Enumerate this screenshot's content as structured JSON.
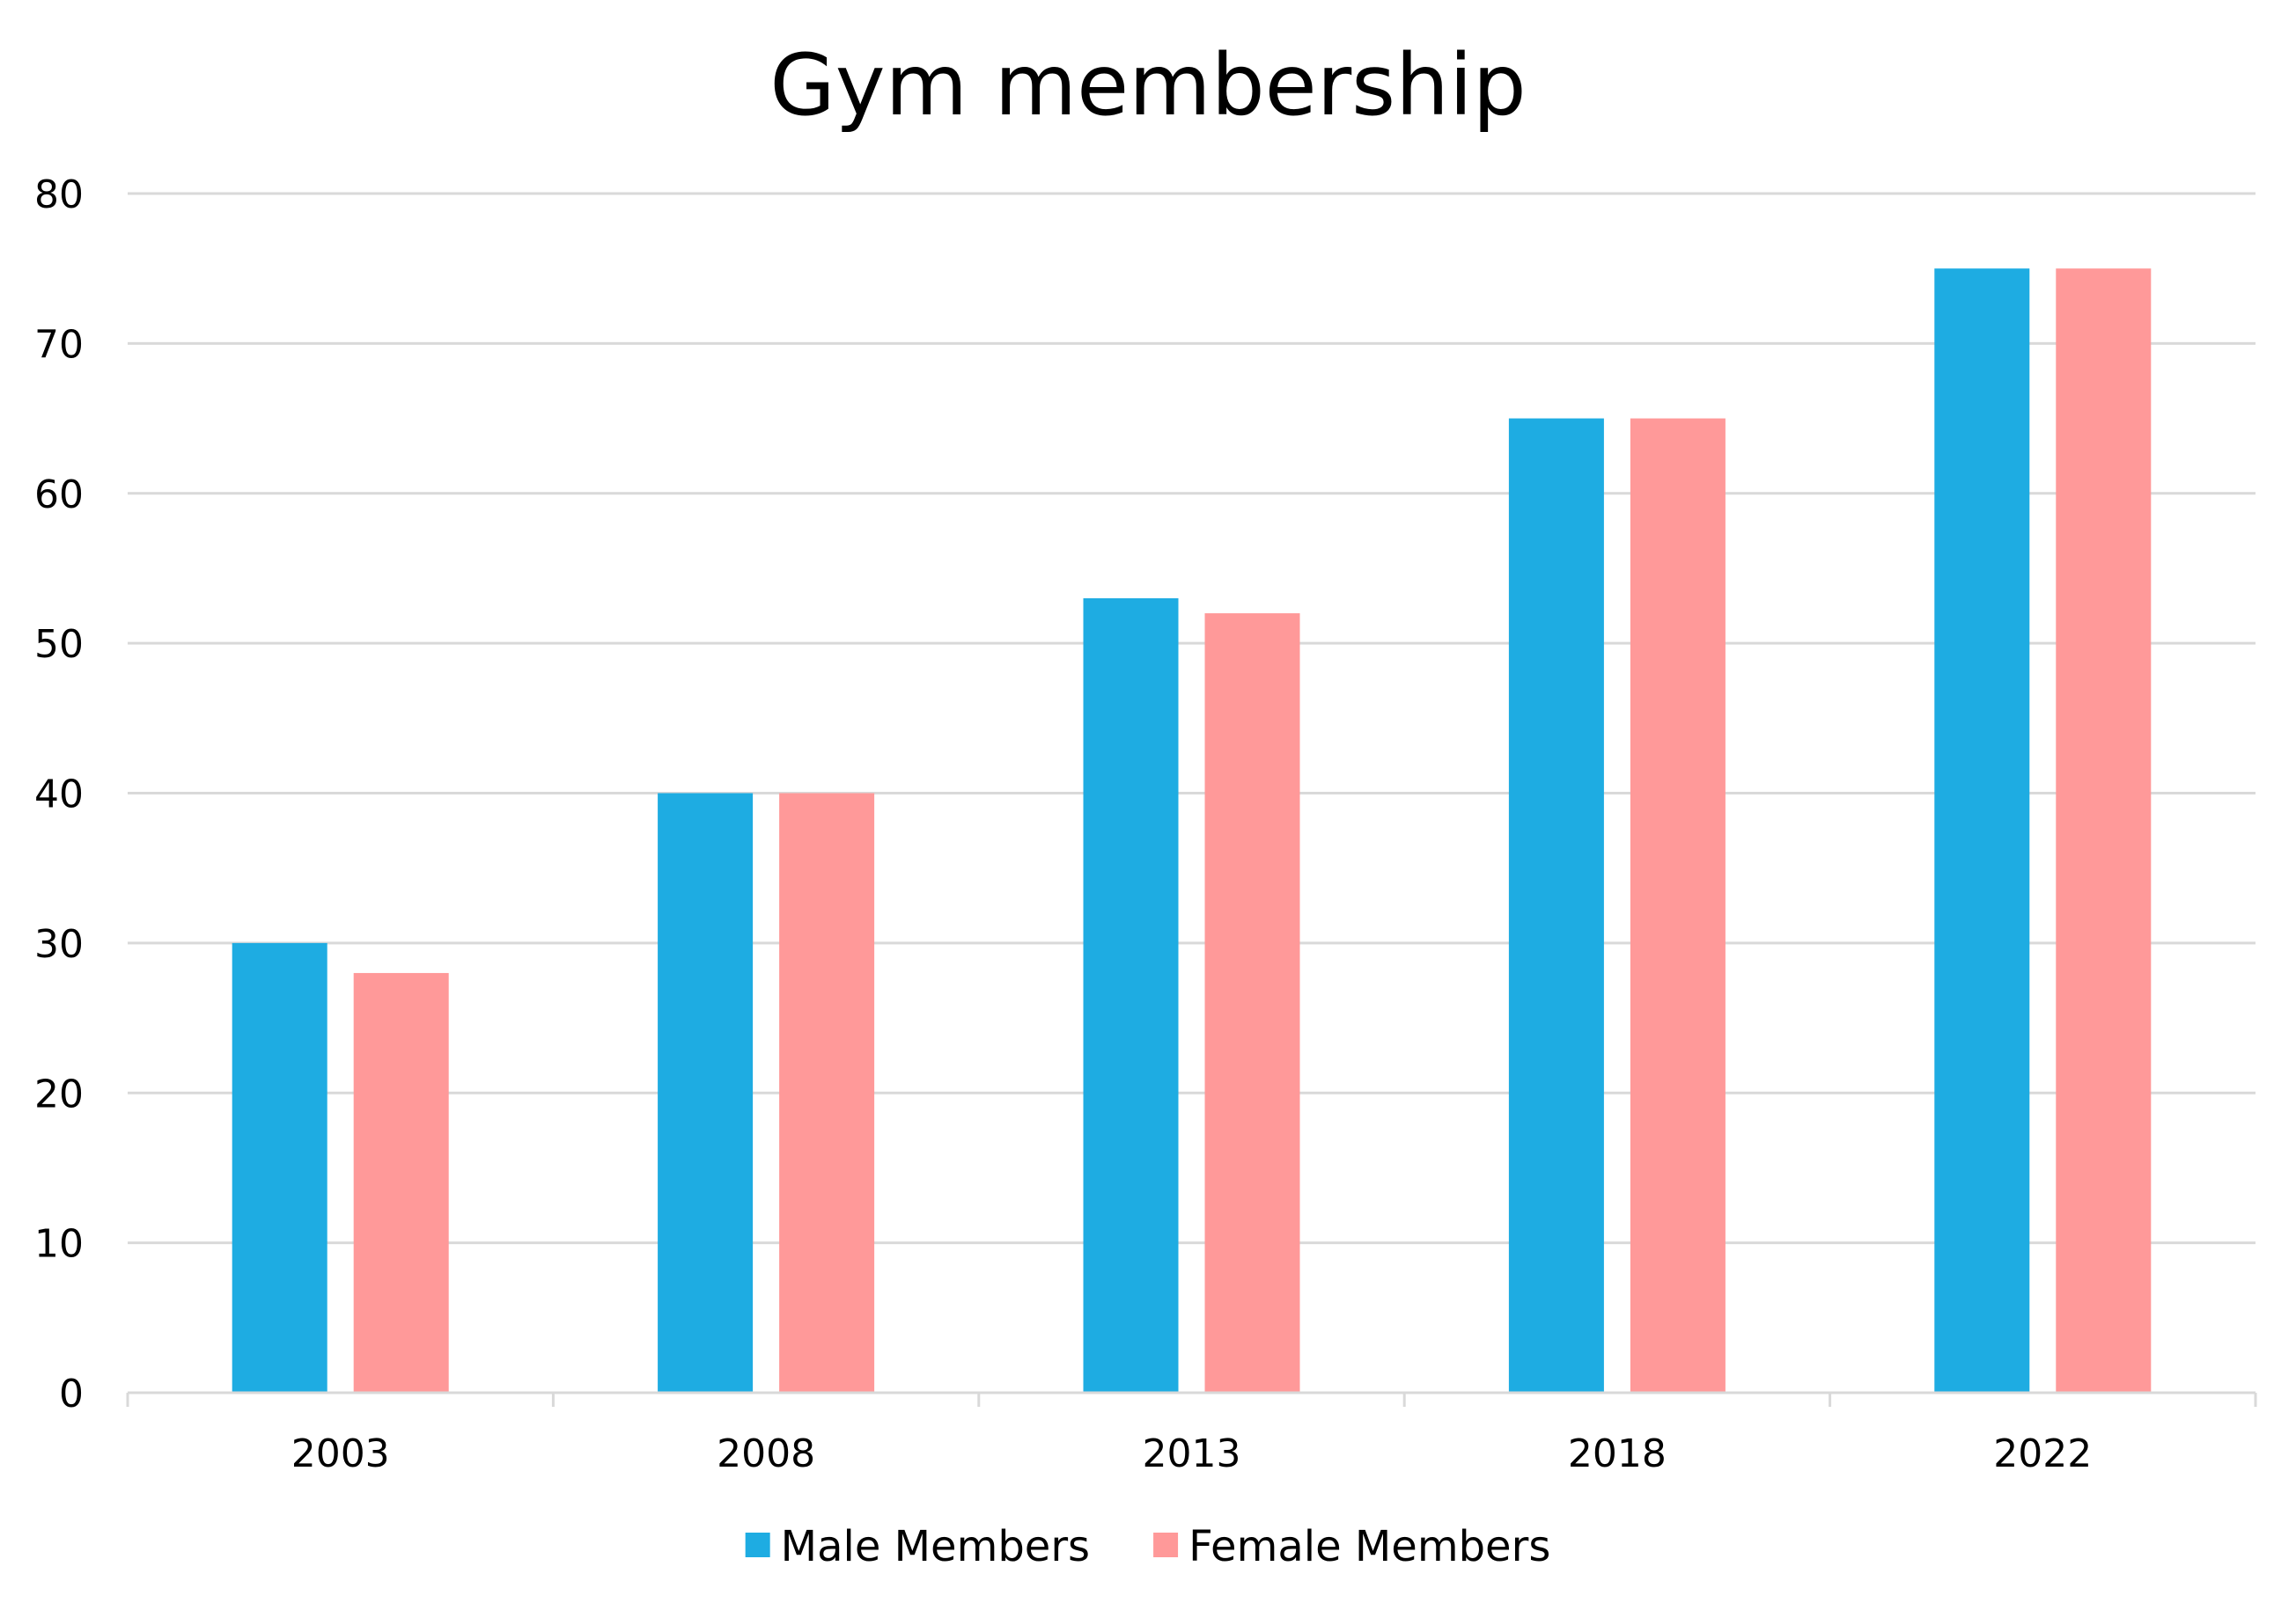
{
  "chart_data": {
    "type": "bar",
    "title": "Gym membership",
    "xlabel": "",
    "ylabel": "",
    "categories": [
      "2003",
      "2008",
      "2013",
      "2018",
      "2022"
    ],
    "series": [
      {
        "name": "Male Members",
        "color": "#1eace2",
        "values": [
          30,
          40,
          53,
          65,
          75
        ]
      },
      {
        "name": "Female Members",
        "color": "#ff9999",
        "values": [
          28,
          40,
          52,
          65,
          75
        ]
      }
    ],
    "ylim": [
      0,
      80
    ],
    "yticks": [
      "0",
      "10",
      "20",
      "30",
      "40",
      "50",
      "60",
      "70",
      "80"
    ],
    "grid": true,
    "legend_position": "bottom"
  }
}
